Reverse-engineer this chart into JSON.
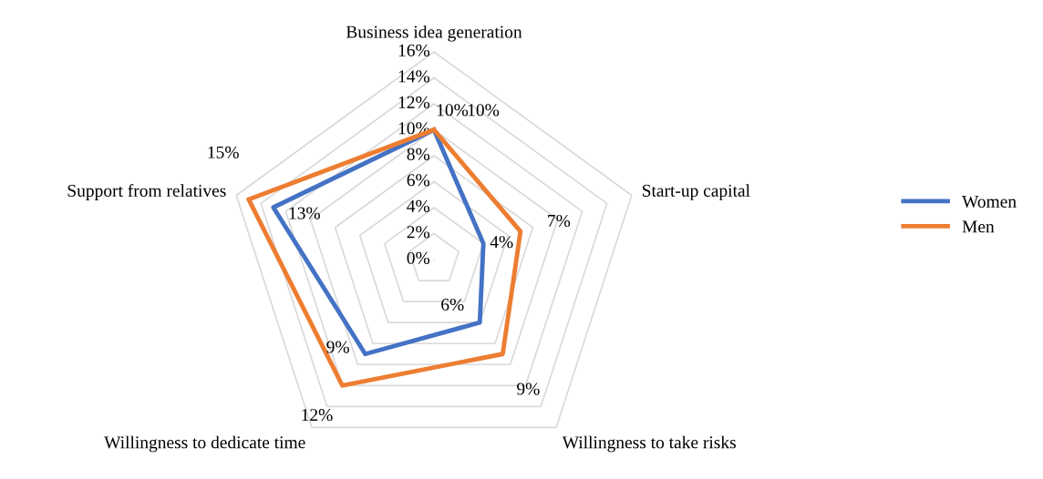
{
  "chart_data": {
    "type": "radar",
    "categories": [
      "Business idea generation",
      "Start-up capital",
      "Willingness to take risks",
      "Willingness to dedicate time",
      "Support from relatives"
    ],
    "series": [
      {
        "name": "Women",
        "color": "#4472c4",
        "values": [
          10,
          4,
          6,
          9,
          13
        ]
      },
      {
        "name": "Men",
        "color": "#ed7d31",
        "values": [
          10,
          7,
          9,
          12,
          15
        ]
      }
    ],
    "ylim": [
      0,
      16
    ],
    "yticks": [
      {
        "value": 0,
        "label": "0%"
      },
      {
        "value": 2,
        "label": "2%"
      },
      {
        "value": 4,
        "label": "4%"
      },
      {
        "value": 6,
        "label": "6%"
      },
      {
        "value": 8,
        "label": "8%"
      },
      {
        "value": 10,
        "label": "10%"
      },
      {
        "value": 12,
        "label": "12%"
      },
      {
        "value": 14,
        "label": "14%"
      },
      {
        "value": 16,
        "label": "16%"
      }
    ],
    "value_labels": [
      [
        "10%",
        "4%",
        "6%",
        "9%",
        "13%"
      ],
      [
        "10%",
        "7%",
        "9%",
        "12%",
        "15%"
      ]
    ],
    "legend": "right",
    "grid": true
  }
}
